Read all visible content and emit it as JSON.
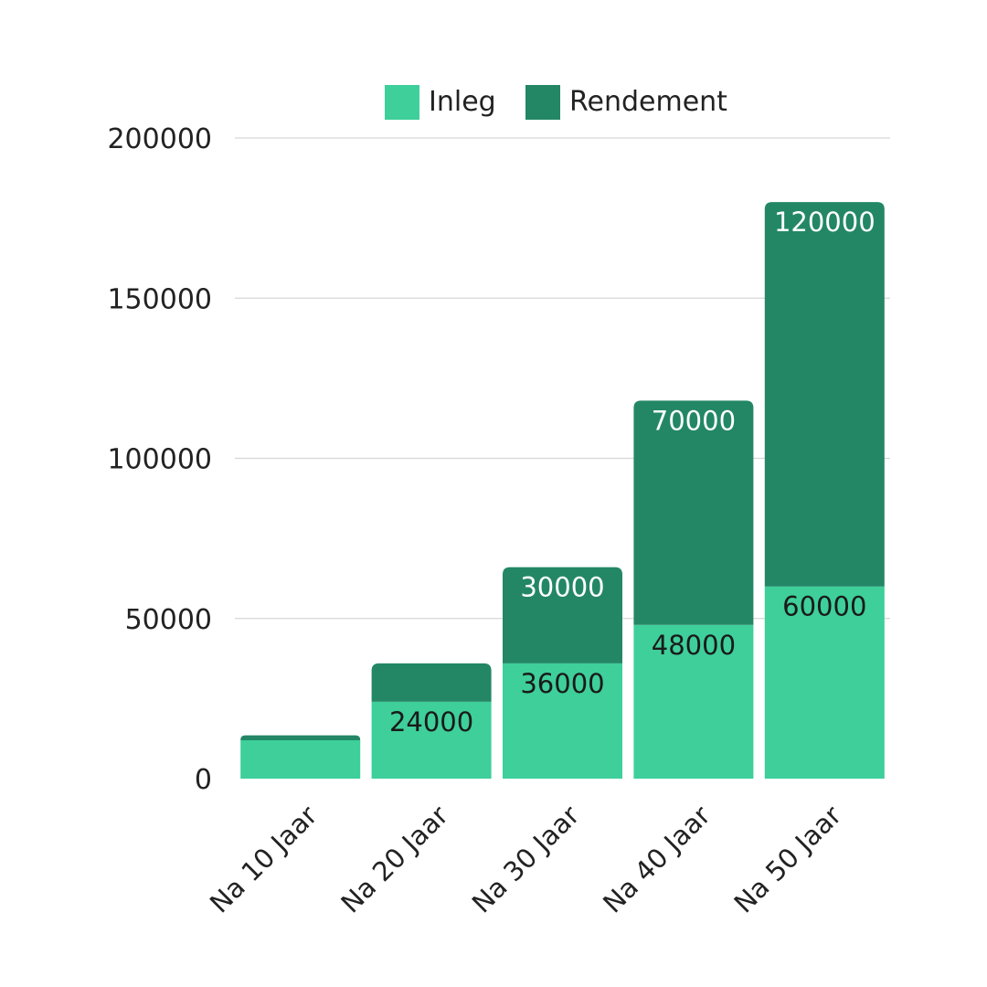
{
  "chart_data": {
    "type": "bar",
    "stacked": true,
    "categories": [
      "Na 10 Jaar",
      "Na 20 Jaar",
      "Na 30 Jaar",
      "Na 40 Jaar",
      "Na 50 Jaar"
    ],
    "series": [
      {
        "name": "Inleg",
        "color": "#3ecf9a",
        "label_color": "#1a1a1a",
        "values": [
          12000,
          24000,
          36000,
          48000,
          60000
        ],
        "labels": [
          "",
          "24000",
          "36000",
          "48000",
          "60000"
        ]
      },
      {
        "name": "Rendement",
        "color": "#238766",
        "label_color": "#ffffff",
        "values": [
          1500,
          12000,
          30000,
          70000,
          120000
        ],
        "labels": [
          "",
          "",
          "30000",
          "70000",
          "120000"
        ]
      }
    ],
    "ylim": [
      0,
      200000
    ],
    "yticks": [
      0,
      50000,
      100000,
      150000,
      200000
    ],
    "ytick_labels": [
      "0",
      "50000",
      "100000",
      "150000",
      "200000"
    ],
    "grid": true,
    "legend": "top-center",
    "title": "",
    "xlabel": "",
    "ylabel": ""
  }
}
